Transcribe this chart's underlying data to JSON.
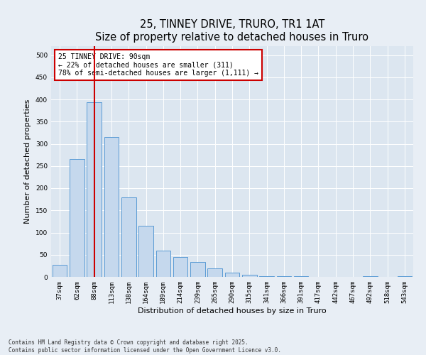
{
  "title": "25, TINNEY DRIVE, TRURO, TR1 1AT",
  "subtitle": "Size of property relative to detached houses in Truro",
  "xlabel": "Distribution of detached houses by size in Truro",
  "ylabel": "Number of detached properties",
  "categories": [
    "37sqm",
    "62sqm",
    "88sqm",
    "113sqm",
    "138sqm",
    "164sqm",
    "189sqm",
    "214sqm",
    "239sqm",
    "265sqm",
    "290sqm",
    "315sqm",
    "341sqm",
    "366sqm",
    "391sqm",
    "417sqm",
    "442sqm",
    "467sqm",
    "492sqm",
    "518sqm",
    "543sqm"
  ],
  "values": [
    28,
    265,
    393,
    315,
    180,
    115,
    60,
    45,
    33,
    20,
    10,
    5,
    2,
    1,
    1,
    0,
    0,
    0,
    1,
    0,
    1
  ],
  "bar_color": "#c5d8ed",
  "bar_edge_color": "#5b9bd5",
  "vline_x_index": 2,
  "vline_color": "#cc0000",
  "annotation_line1": "25 TINNEY DRIVE: 90sqm",
  "annotation_line2": "← 22% of detached houses are smaller (311)",
  "annotation_line3": "78% of semi-detached houses are larger (1,111) →",
  "annotation_box_color": "#ffffff",
  "annotation_box_edge_color": "#cc0000",
  "background_color": "#e8eef5",
  "plot_background_color": "#dce6f0",
  "ylim": [
    0,
    520
  ],
  "yticks": [
    0,
    50,
    100,
    150,
    200,
    250,
    300,
    350,
    400,
    450,
    500
  ],
  "footer_text": "Contains HM Land Registry data © Crown copyright and database right 2025.\nContains public sector information licensed under the Open Government Licence v3.0.",
  "title_fontsize": 10.5,
  "tick_fontsize": 6.5,
  "label_fontsize": 8,
  "annotation_fontsize": 7
}
